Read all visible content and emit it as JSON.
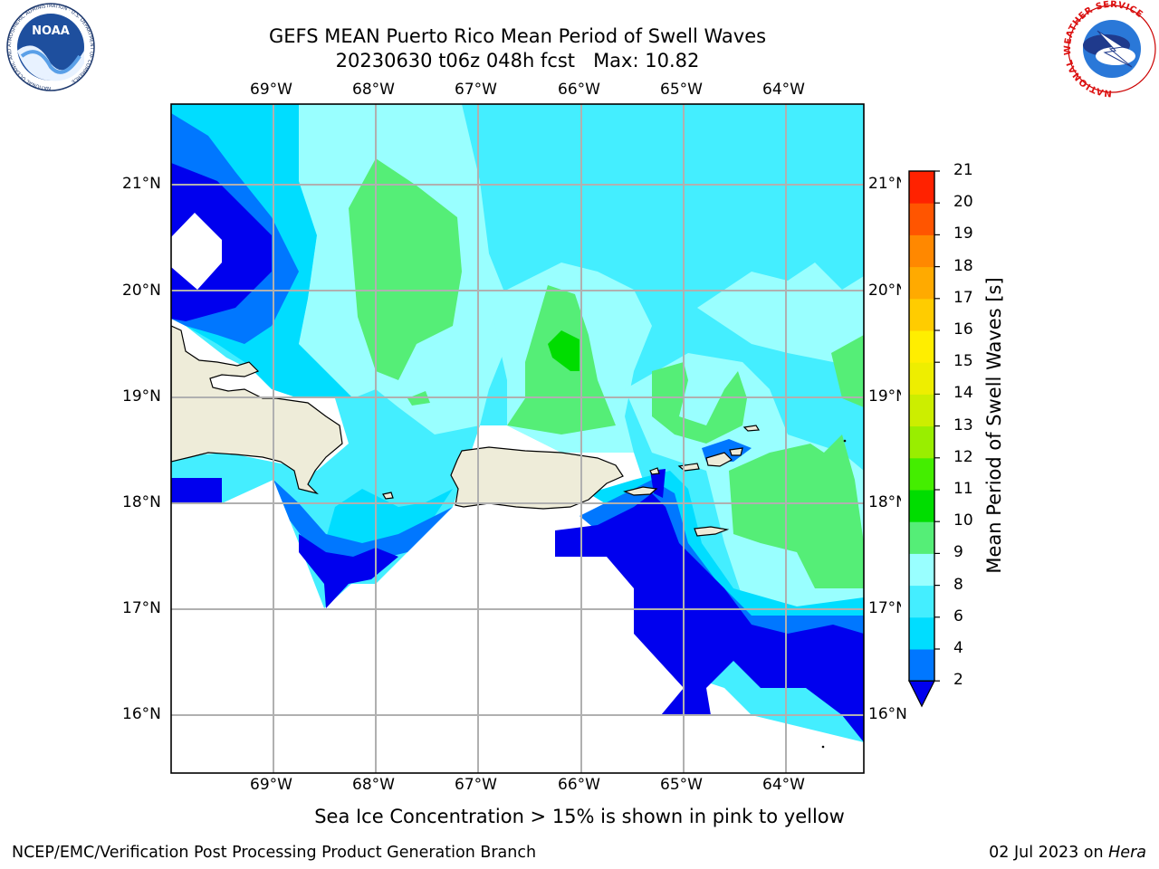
{
  "header": {
    "title_line1": "GEFS MEAN Puerto Rico Mean Period of Swell Waves",
    "title_line2": "20230630 t06z 048h fcst   Max: 10.82"
  },
  "logos": {
    "left_name": "NOAA",
    "left_ring_text": "NATIONAL OCEANIC AND ATMOSPHERIC ADMINISTRATION · U.S. DEPARTMENT OF COMMERCE",
    "right_ring_text": "NATIONAL WEATHER SERVICE"
  },
  "map": {
    "lon_labels": [
      "69°W",
      "68°W",
      "67°W",
      "66°W",
      "65°W",
      "64°W"
    ],
    "lat_labels": [
      "21°N",
      "20°N",
      "19°N",
      "18°N",
      "17°N",
      "16°N"
    ],
    "land_color": "#eeecd9",
    "missing_color": "#ffffff",
    "grid_color": "#b0b0b0"
  },
  "colorbar": {
    "label": "Mean Period of Swell Waves [s]",
    "ticks": [
      "2",
      "4",
      "6",
      "8",
      "9",
      "10",
      "11",
      "12",
      "13",
      "14",
      "15",
      "16",
      "17",
      "18",
      "19",
      "20",
      "21"
    ],
    "colors": [
      "#0077ff",
      "#00ddff",
      "#44eeff",
      "#99ffff",
      "#55ee77",
      "#00dd00",
      "#44ee00",
      "#99ee00",
      "#ccee00",
      "#eeee00",
      "#ffee00",
      "#ffcc00",
      "#ffaa00",
      "#ff8800",
      "#ff5500",
      "#ff2200"
    ],
    "under_color": "#0000ee"
  },
  "notes": {
    "sea_ice": "Sea Ice Concentration > 15% is shown in pink to yellow"
  },
  "footer": {
    "left": "NCEP/EMC/Verification Post Processing Product Generation Branch",
    "date": "02 Jul 2023 on ",
    "host": "Hera"
  }
}
